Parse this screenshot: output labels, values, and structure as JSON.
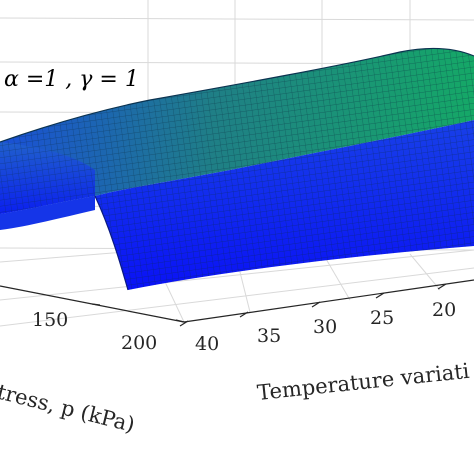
{
  "chart_data": {
    "type": "surface",
    "annotation": "α =1 , γ = 1",
    "xlabel": "Temperature variati",
    "ylabel": "tress, p (kPa)",
    "x_ticks": [
      "40",
      "35",
      "30",
      "25",
      "20"
    ],
    "y_ticks": [
      "150",
      "200"
    ],
    "colormap": [
      "#0000ff",
      "#008080",
      "#00c060"
    ],
    "grid": true,
    "box": true
  }
}
